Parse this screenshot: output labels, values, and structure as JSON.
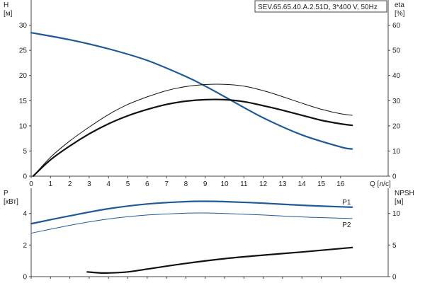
{
  "title": "SEV.65.65.40.A.2.51D, 3*400 V, 50Hz",
  "colors": {
    "blue": "#1f5a96",
    "black": "#111111",
    "axis": "#444444"
  },
  "chart_data": [
    {
      "type": "line",
      "xlabel": "Q [л/с]",
      "xlim": [
        0,
        18
      ],
      "x_ticks": [
        0,
        1,
        2,
        3,
        4,
        5,
        6,
        7,
        8,
        9,
        10,
        11,
        12,
        13,
        14,
        15,
        16
      ],
      "left_axis": {
        "label_line1": "H",
        "label_line2": "[м]",
        "ylim": [
          0,
          35
        ],
        "ticks": [
          0,
          5,
          10,
          15,
          20,
          25,
          30
        ]
      },
      "right_axis": {
        "label_line1": "eta",
        "label_line2": "[%]",
        "ylim": [
          0,
          70
        ],
        "ticks": [
          0,
          10,
          20,
          30,
          40,
          50,
          60
        ]
      },
      "series": [
        {
          "axis": "left",
          "color": "#1f5a96",
          "width": 2.2,
          "x": [
            0,
            2,
            4,
            6,
            8,
            9,
            10,
            12,
            14,
            16,
            16.6
          ],
          "y": [
            28.5,
            27.1,
            25.3,
            23.0,
            19.8,
            17.9,
            15.8,
            11.6,
            8.2,
            5.8,
            5.4
          ]
        },
        {
          "axis": "right",
          "color": "#111111",
          "width": 1.0,
          "x": [
            0.1,
            1,
            2,
            3,
            4,
            5,
            6,
            7,
            8,
            9,
            10,
            11,
            12,
            13,
            14,
            15,
            16,
            16.6
          ],
          "y": [
            0,
            7.5,
            14,
            19.5,
            24.5,
            28.5,
            31.5,
            34,
            35.6,
            36.4,
            36.5,
            35.8,
            34,
            31.6,
            29,
            26.6,
            24.8,
            24.2
          ]
        },
        {
          "axis": "right",
          "color": "#111111",
          "width": 2.2,
          "x": [
            0.1,
            1,
            2,
            3,
            4,
            5,
            6,
            7,
            8,
            9,
            10,
            11,
            12,
            13,
            14,
            15,
            16,
            16.6
          ],
          "y": [
            0,
            6.5,
            12,
            16.8,
            20.8,
            24,
            26.5,
            28.5,
            29.8,
            30.4,
            30.4,
            29.6,
            28,
            26.2,
            24.2,
            22.2,
            20.8,
            20.2
          ]
        }
      ]
    },
    {
      "type": "line",
      "xlim": [
        0,
        18
      ],
      "left_axis": {
        "label_line1": "P",
        "label_line2": "[кВт]",
        "ylim": [
          0,
          5.6
        ],
        "ticks": [
          0,
          2,
          4
        ]
      },
      "right_axis": {
        "label_line1": "NPSH",
        "label_line2": "[м]",
        "ylim": [
          0,
          14
        ],
        "ticks": [
          0,
          5,
          10
        ]
      },
      "series": [
        {
          "name": "P1",
          "axis": "left",
          "color": "#1f5a96",
          "width": 2.2,
          "x": [
            0,
            2,
            4,
            6,
            8,
            9,
            10,
            12,
            14,
            16,
            16.6
          ],
          "y": [
            3.35,
            3.85,
            4.3,
            4.6,
            4.75,
            4.77,
            4.75,
            4.65,
            4.52,
            4.42,
            4.4
          ]
        },
        {
          "name": "P2",
          "axis": "left",
          "color": "#1f5a96",
          "width": 1.0,
          "x": [
            0,
            2,
            4,
            6,
            8,
            9,
            10,
            12,
            14,
            16,
            16.6
          ],
          "y": [
            2.75,
            3.25,
            3.65,
            3.9,
            4.02,
            4.03,
            4.0,
            3.9,
            3.78,
            3.7,
            3.68
          ]
        },
        {
          "axis": "right",
          "color": "#111111",
          "width": 2.2,
          "x": [
            2.9,
            3.5,
            4,
            5,
            6,
            8,
            10,
            12,
            14,
            16,
            16.6
          ],
          "y": [
            0.75,
            0.6,
            0.58,
            0.75,
            1.2,
            2.1,
            2.85,
            3.4,
            3.9,
            4.45,
            4.6
          ]
        }
      ]
    }
  ]
}
